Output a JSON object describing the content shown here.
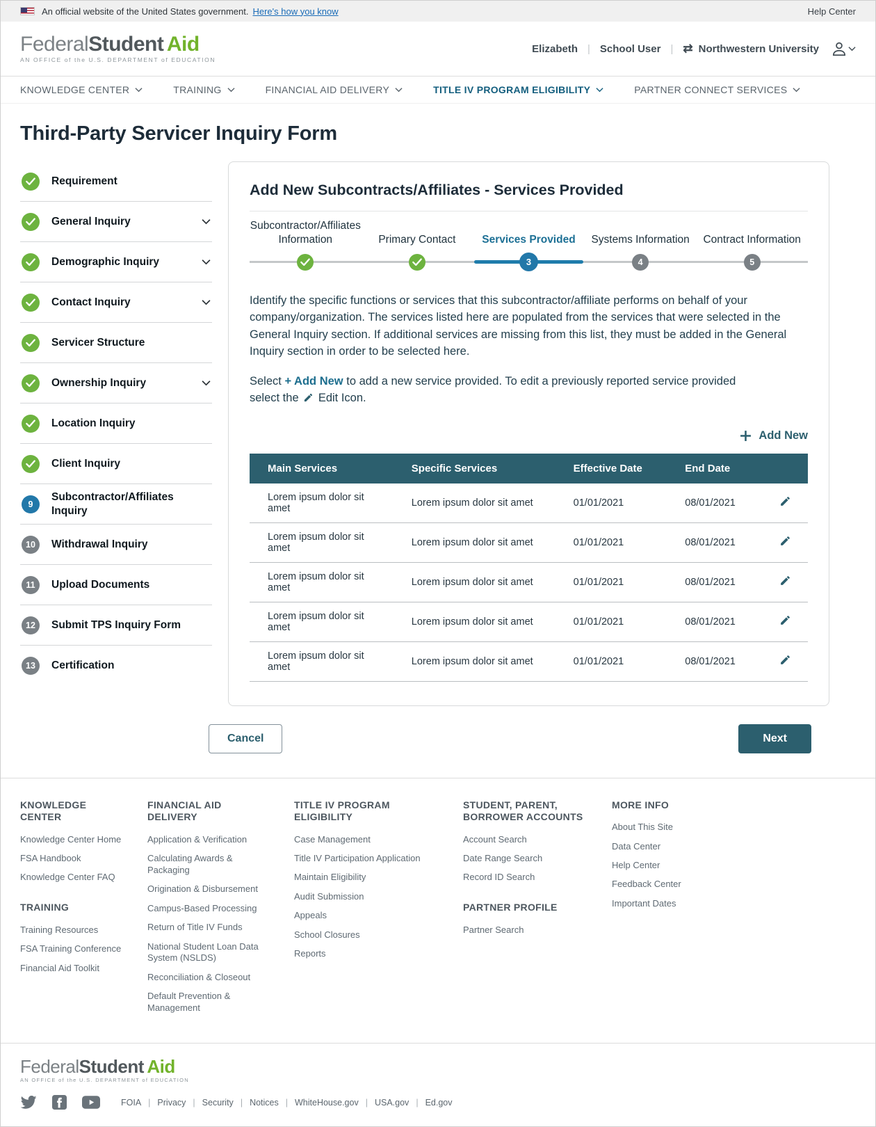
{
  "banner": {
    "official": "An official website of the United States government.",
    "link": "Here's how you know",
    "help": "Help Center"
  },
  "logo": {
    "part1": "Federal",
    "part2": "Student",
    "part3": "Aid",
    "tagline": "AN OFFICE of the U.S. DEPARTMENT of EDUCATION"
  },
  "user": {
    "name": "Elizabeth",
    "role": "School User",
    "org": "Northwestern University",
    "swap_icon": "swap-arrows-icon",
    "account_icon": "person-icon"
  },
  "nav": {
    "items": [
      {
        "label": "KNOWLEDGE CENTER",
        "active": false
      },
      {
        "label": "TRAINING",
        "active": false
      },
      {
        "label": "FINANCIAL AID DELIVERY",
        "active": false
      },
      {
        "label": "TITLE IV PROGRAM ELIGIBILITY",
        "active": true
      },
      {
        "label": "PARTNER CONNECT SERVICES",
        "active": false
      }
    ]
  },
  "page_title": "Third-Party Servicer Inquiry Form",
  "sidebar": {
    "items": [
      {
        "label": "Requirement",
        "state": "complete",
        "chevron": false
      },
      {
        "label": "General Inquiry",
        "state": "complete",
        "chevron": true
      },
      {
        "label": "Demographic Inquiry",
        "state": "complete",
        "chevron": true
      },
      {
        "label": "Contact Inquiry",
        "state": "complete",
        "chevron": true
      },
      {
        "label": "Servicer Structure",
        "state": "complete",
        "chevron": false
      },
      {
        "label": "Ownership Inquiry",
        "state": "complete",
        "chevron": true
      },
      {
        "label": "Location Inquiry",
        "state": "complete",
        "chevron": false
      },
      {
        "label": "Client Inquiry",
        "state": "complete",
        "chevron": false
      },
      {
        "label": "Subcontractor/Affiliates Inquiry",
        "state": "active",
        "number": "9",
        "chevron": false
      },
      {
        "label": "Withdrawal Inquiry",
        "state": "upcoming",
        "number": "10",
        "chevron": false
      },
      {
        "label": "Upload Documents",
        "state": "upcoming",
        "number": "11",
        "chevron": false
      },
      {
        "label": "Submit TPS Inquiry Form",
        "state": "upcoming",
        "number": "12",
        "chevron": false
      },
      {
        "label": "Certification",
        "state": "upcoming",
        "number": "13",
        "chevron": false
      }
    ]
  },
  "card": {
    "title": "Add New Subcontracts/Affiliates - Services Provided",
    "steps": [
      {
        "label": "Subcontractor/Affiliates Information",
        "state": "complete"
      },
      {
        "label": "Primary Contact",
        "state": "complete"
      },
      {
        "label": "Services Provided",
        "state": "active",
        "number": "3"
      },
      {
        "label": "Systems Information",
        "state": "upcoming",
        "number": "4"
      },
      {
        "label": "Contract Information",
        "state": "upcoming",
        "number": "5"
      }
    ],
    "intro": "Identify the specific functions or services that this subcontractor/affiliate performs on behalf of your company/organization.  The services listed here are populated from the services that were selected in the General Inquiry section.  If additional services are missing from this list, they must be added in the General Inquiry section in order to be selected here.",
    "hint": {
      "before": "Select",
      "add_new": "+ Add New",
      "middle": "to add a new service provided. To edit a previously reported service provided select the",
      "after": "Edit Icon."
    },
    "add_new_label": "Add New",
    "table": {
      "headers": [
        "Main Services",
        "Specific Services",
        "Effective Date",
        "End Date"
      ],
      "rows": [
        {
          "main_services": "Lorem ipsum dolor sit amet",
          "specific_services": "Lorem ipsum dolor sit amet",
          "effective_date": "01/01/2021",
          "end_date": "08/01/2021"
        },
        {
          "main_services": "Lorem ipsum dolor sit amet",
          "specific_services": "Lorem ipsum dolor sit amet",
          "effective_date": "01/01/2021",
          "end_date": "08/01/2021"
        },
        {
          "main_services": "Lorem ipsum dolor sit amet",
          "specific_services": "Lorem ipsum dolor sit amet",
          "effective_date": "01/01/2021",
          "end_date": "08/01/2021"
        },
        {
          "main_services": "Lorem ipsum dolor sit amet",
          "specific_services": "Lorem ipsum dolor sit amet",
          "effective_date": "01/01/2021",
          "end_date": "08/01/2021"
        },
        {
          "main_services": "Lorem ipsum dolor sit amet",
          "specific_services": "Lorem ipsum dolor sit amet",
          "effective_date": "01/01/2021",
          "end_date": "08/01/2021"
        }
      ]
    },
    "cancel_label": "Cancel",
    "next_label": "Next"
  },
  "footer": {
    "columns": [
      {
        "sections": [
          {
            "heading": "KNOWLEDGE CENTER",
            "links": [
              "Knowledge Center Home",
              "FSA Handbook",
              "Knowledge Center FAQ"
            ]
          },
          {
            "heading": "TRAINING",
            "links": [
              "Training Resources",
              "FSA Training Conference",
              "Financial Aid Toolkit"
            ]
          }
        ]
      },
      {
        "sections": [
          {
            "heading": "FINANCIAL AID DELIVERY",
            "links": [
              "Application & Verification",
              "Calculating Awards & Packaging",
              "Origination & Disbursement",
              "Campus-Based Processing",
              "Return of Title IV Funds",
              "National Student Loan Data System (NSLDS)",
              "Reconciliation & Closeout",
              "Default Prevention & Management"
            ]
          }
        ]
      },
      {
        "sections": [
          {
            "heading": "TITLE IV PROGRAM ELIGIBILITY",
            "links": [
              "Case Management",
              "Title IV Participation Application",
              "Maintain Eligibility",
              "Audit Submission",
              "Appeals",
              "School Closures",
              "Reports"
            ]
          }
        ]
      },
      {
        "sections": [
          {
            "heading": "STUDENT, PARENT, BORROWER ACCOUNTS",
            "links": [
              "Account Search",
              "Date Range Search",
              "Record ID Search"
            ]
          },
          {
            "heading": "PARTNER PROFILE",
            "links": [
              "Partner Search"
            ]
          }
        ]
      },
      {
        "sections": [
          {
            "heading": "MORE INFO",
            "links": [
              "About This Site",
              "Data Center",
              "Help Center",
              "Feedback Center",
              "Important Dates"
            ]
          }
        ]
      }
    ]
  },
  "bottom": {
    "social": [
      "twitter",
      "facebook",
      "youtube"
    ],
    "links": [
      "FOIA",
      "Privacy",
      "Security",
      "Notices",
      "WhiteHouse.gov",
      "USA.gov",
      "Ed.gov"
    ]
  },
  "colors": {
    "accent_teal": "#2c5f6e",
    "active_blue": "#2278a9",
    "complete_green": "#6db33f",
    "upcoming_gray": "#7a8085",
    "nav_active": "#135e7e",
    "link_blue": "#1a6cb8"
  }
}
